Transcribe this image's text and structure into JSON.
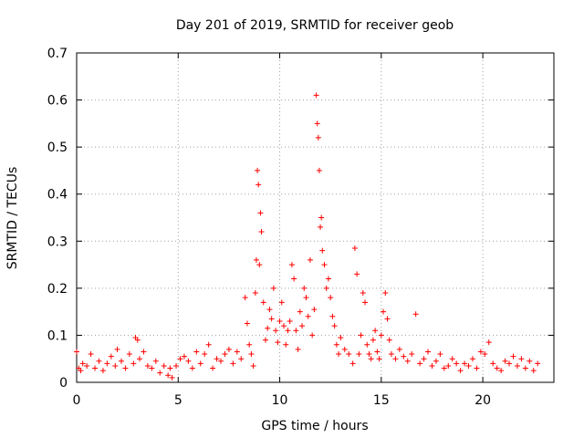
{
  "chart_data": {
    "type": "scatter",
    "title": "Day 201 of 2019, SRMTID for receiver geob",
    "xlabel": "GPS time / hours",
    "ylabel": "SRMTID / TECUs",
    "xlim": [
      0,
      23.5
    ],
    "ylim": [
      0,
      0.7
    ],
    "xticks": [
      0,
      5,
      10,
      15,
      20
    ],
    "xtick_labels": [
      "0",
      "5",
      "10",
      "15",
      "20"
    ],
    "yticks": [
      0,
      0.1,
      0.2,
      0.3,
      0.4,
      0.5,
      0.6,
      0.7
    ],
    "ytick_labels": [
      "0",
      "0.1",
      "0.2",
      "0.3",
      "0.4",
      "0.5",
      "0.6",
      "0.7"
    ],
    "grid": true,
    "marker": "+",
    "color": "#ff0000",
    "series": [
      {
        "name": "SRMTID",
        "x": [
          0.0,
          0.1,
          0.2,
          0.3,
          0.5,
          0.7,
          0.9,
          1.1,
          1.3,
          1.5,
          1.7,
          1.9,
          2.0,
          2.2,
          2.4,
          2.6,
          2.8,
          2.9,
          3.0,
          3.1,
          3.3,
          3.5,
          3.7,
          3.9,
          4.1,
          4.3,
          4.5,
          4.6,
          4.7,
          4.9,
          5.1,
          5.3,
          5.5,
          5.7,
          5.9,
          6.1,
          6.3,
          6.5,
          6.7,
          6.9,
          7.1,
          7.3,
          7.5,
          7.7,
          7.9,
          8.1,
          8.3,
          8.4,
          8.5,
          8.6,
          8.7,
          8.8,
          8.85,
          8.9,
          8.95,
          9.0,
          9.05,
          9.1,
          9.2,
          9.3,
          9.4,
          9.5,
          9.6,
          9.7,
          9.8,
          9.9,
          10.0,
          10.1,
          10.2,
          10.3,
          10.4,
          10.5,
          10.6,
          10.7,
          10.8,
          10.9,
          11.0,
          11.1,
          11.2,
          11.3,
          11.4,
          11.5,
          11.6,
          11.7,
          11.8,
          11.85,
          11.9,
          11.95,
          12.0,
          12.05,
          12.1,
          12.2,
          12.3,
          12.4,
          12.5,
          12.6,
          12.7,
          12.8,
          12.9,
          13.0,
          13.2,
          13.4,
          13.6,
          13.7,
          13.8,
          13.9,
          14.0,
          14.1,
          14.2,
          14.3,
          14.4,
          14.5,
          14.6,
          14.7,
          14.8,
          14.9,
          15.0,
          15.1,
          15.2,
          15.3,
          15.4,
          15.5,
          15.7,
          15.9,
          16.1,
          16.3,
          16.5,
          16.7,
          16.9,
          17.1,
          17.3,
          17.5,
          17.7,
          17.9,
          18.1,
          18.3,
          18.5,
          18.7,
          18.9,
          19.1,
          19.3,
          19.5,
          19.7,
          19.9,
          20.1,
          20.3,
          20.5,
          20.7,
          20.9,
          21.1,
          21.3,
          21.5,
          21.7,
          21.9,
          22.1,
          22.3,
          22.5,
          22.7
        ],
        "y": [
          0.065,
          0.03,
          0.025,
          0.04,
          0.035,
          0.06,
          0.03,
          0.045,
          0.025,
          0.04,
          0.055,
          0.035,
          0.07,
          0.045,
          0.03,
          0.06,
          0.04,
          0.095,
          0.09,
          0.05,
          0.065,
          0.035,
          0.03,
          0.045,
          0.02,
          0.035,
          0.015,
          0.03,
          0.01,
          0.035,
          0.05,
          0.055,
          0.045,
          0.03,
          0.065,
          0.04,
          0.06,
          0.08,
          0.03,
          0.05,
          0.045,
          0.06,
          0.07,
          0.04,
          0.065,
          0.05,
          0.18,
          0.125,
          0.08,
          0.06,
          0.035,
          0.19,
          0.26,
          0.45,
          0.42,
          0.25,
          0.36,
          0.32,
          0.17,
          0.09,
          0.115,
          0.155,
          0.135,
          0.2,
          0.11,
          0.085,
          0.13,
          0.17,
          0.12,
          0.08,
          0.11,
          0.13,
          0.25,
          0.22,
          0.11,
          0.07,
          0.15,
          0.12,
          0.2,
          0.18,
          0.14,
          0.26,
          0.1,
          0.155,
          0.61,
          0.55,
          0.52,
          0.45,
          0.33,
          0.35,
          0.28,
          0.25,
          0.2,
          0.22,
          0.18,
          0.14,
          0.12,
          0.08,
          0.06,
          0.095,
          0.07,
          0.06,
          0.04,
          0.285,
          0.23,
          0.06,
          0.1,
          0.19,
          0.17,
          0.08,
          0.06,
          0.05,
          0.09,
          0.11,
          0.065,
          0.05,
          0.1,
          0.15,
          0.19,
          0.135,
          0.09,
          0.06,
          0.05,
          0.07,
          0.055,
          0.045,
          0.06,
          0.145,
          0.04,
          0.05,
          0.065,
          0.035,
          0.045,
          0.06,
          0.03,
          0.035,
          0.05,
          0.04,
          0.025,
          0.04,
          0.035,
          0.05,
          0.03,
          0.065,
          0.06,
          0.085,
          0.04,
          0.03,
          0.025,
          0.045,
          0.04,
          0.055,
          0.035,
          0.05,
          0.03,
          0.045,
          0.025,
          0.04
        ]
      }
    ]
  }
}
